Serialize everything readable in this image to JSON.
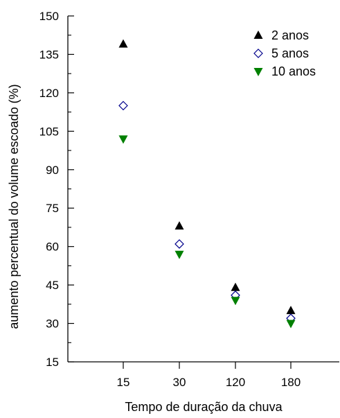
{
  "chart_data": {
    "type": "scatter",
    "title": "",
    "xlabel": "Tempo de duração da chuva",
    "ylabel": "aumento percentual do volume escoado (%)",
    "categories": [
      "15",
      "30",
      "120",
      "180"
    ],
    "ylim": [
      15,
      150
    ],
    "yticks": [
      15,
      30,
      45,
      60,
      75,
      90,
      105,
      120,
      135,
      150
    ],
    "grid": false,
    "legend_position": "top-right",
    "series": [
      {
        "name": "2 anos",
        "marker": "triangle-up",
        "color": "#000000",
        "values": [
          139,
          68,
          44,
          35
        ]
      },
      {
        "name": "5 anos",
        "marker": "diamond-open",
        "color": "#00008b",
        "values": [
          115,
          61,
          41,
          32
        ]
      },
      {
        "name": "10 anos",
        "marker": "triangle-down",
        "color": "#008000",
        "values": [
          102,
          57,
          39,
          30
        ]
      }
    ]
  }
}
